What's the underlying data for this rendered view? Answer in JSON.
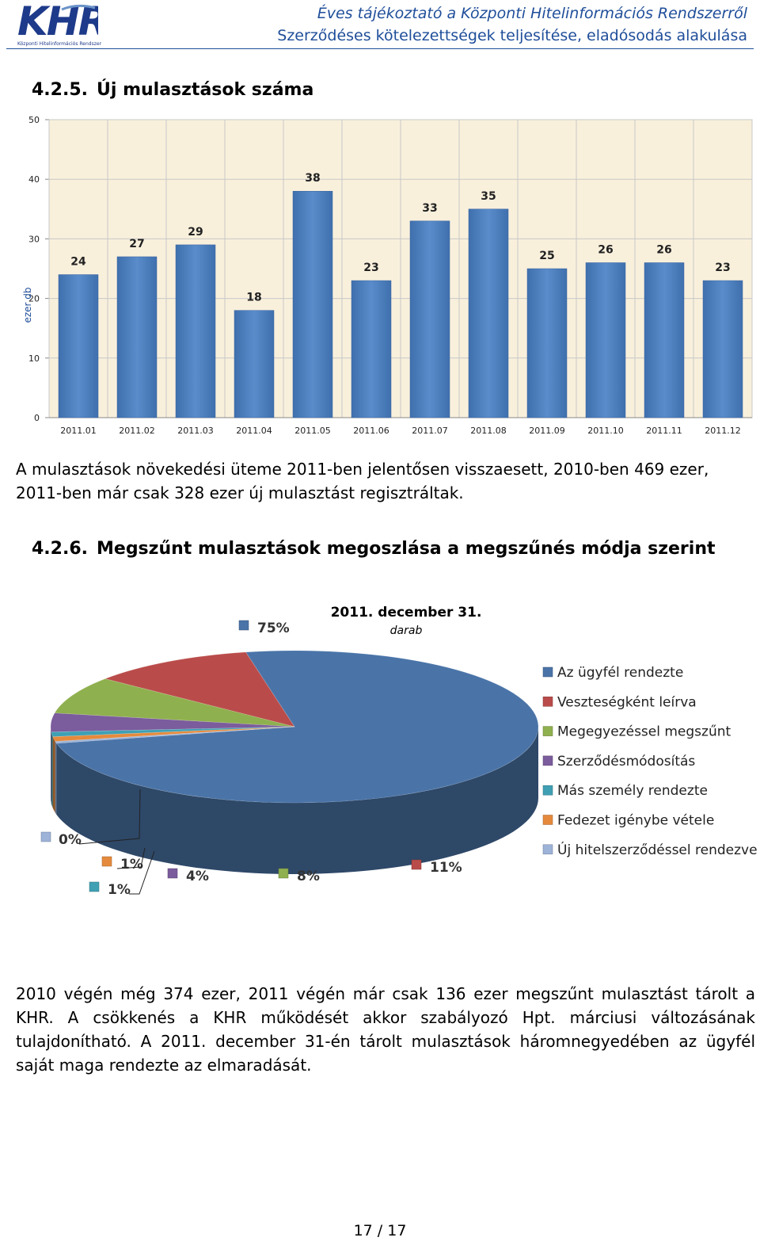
{
  "header": {
    "logo_text": "KHR",
    "logo_subtitle": "Központi Hitelinformációs Rendszer",
    "title_line1": "Éves tájékoztató a Központi Hitelinformációs Rendszerről",
    "title_line2": "Szerződéses kötelezettségek teljesítése, eladósodás alakulása"
  },
  "section1": {
    "number": "4.2.5.",
    "title": "Új mulasztások száma"
  },
  "paragraph1": "A mulasztások növekedési üteme 2011-ben jelentősen visszaesett, 2010-ben 469 ezer, 2011-ben már csak 328 ezer új mulasztást regisztráltak.",
  "section2": {
    "number": "4.2.6.",
    "title": "Megszűnt mulasztások megoszlása a megszűnés módja szerint"
  },
  "paragraph2": "2010 végén még 374 ezer, 2011 végén már csak 136 ezer megszűnt mulasztást tárolt a KHR. A csökkenés a KHR működését akkor szabályozó Hpt. márciusi változásának tulajdonítható. A 2011. december 31-én tárolt mulasztások háromnegyedében az ügyfél saját maga rendezte az elmaradását.",
  "footer": {
    "page": "17 / 17"
  },
  "chart_data": [
    {
      "type": "bar",
      "title": "",
      "ylabel": "ezer db",
      "xlabel": "",
      "ylim": [
        0,
        50
      ],
      "yticks": [
        0,
        10,
        20,
        30,
        40,
        50
      ],
      "grid": true,
      "bar_color": "#4f81bd",
      "categories": [
        "2011.01",
        "2011.02",
        "2011.03",
        "2011.04",
        "2011.05",
        "2011.06",
        "2011.07",
        "2011.08",
        "2011.09",
        "2011.10",
        "2011.11",
        "2011.12"
      ],
      "values": [
        24,
        27,
        29,
        18,
        38,
        23,
        33,
        35,
        25,
        26,
        26,
        23
      ]
    },
    {
      "type": "pie",
      "title": "2011. december 31.",
      "subtitle": "darab",
      "legend_position": "right",
      "slices": [
        {
          "name": "Az ügyfél rendezte",
          "label": "75%",
          "value": 75,
          "color": "#4a74a8"
        },
        {
          "name": "Veszteségként leírva",
          "label": "11%",
          "value": 11,
          "color": "#b94c4a"
        },
        {
          "name": "Megegyezéssel megszűnt",
          "label": "8%",
          "value": 8,
          "color": "#8fb04e"
        },
        {
          "name": "Szerződésmódosítás",
          "label": "4%",
          "value": 4,
          "color": "#7b5c9c"
        },
        {
          "name": "Más személy rendezte",
          "label": "1%",
          "value": 1,
          "color": "#3fa0b4"
        },
        {
          "name": "Fedezet igénybe vétele",
          "label": "1%",
          "value": 1,
          "color": "#e58a3c"
        },
        {
          "name": "Új hitelszerződéssel rendezve",
          "label": "0%",
          "value": 0,
          "color": "#9db3d8"
        }
      ]
    }
  ]
}
